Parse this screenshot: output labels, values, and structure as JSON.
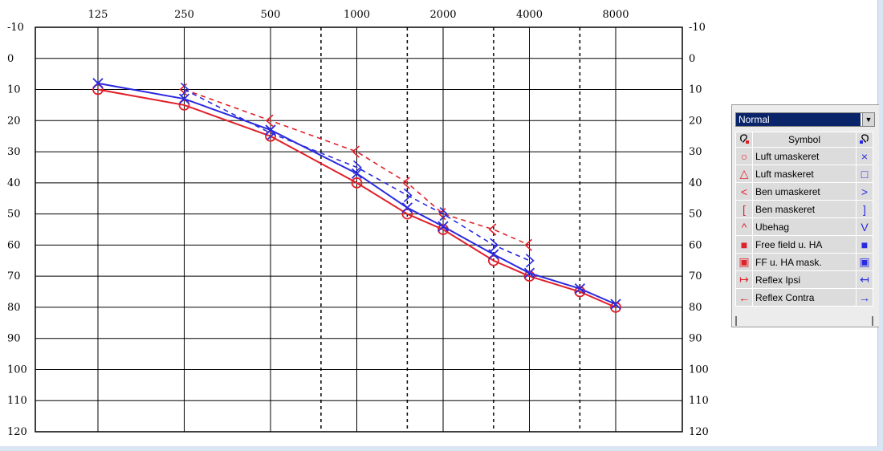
{
  "colors": {
    "right_ear": "#e0202a",
    "left_ear": "#2a2ae0",
    "panel_bg": "#ececec",
    "select_bg": "#0a246a"
  },
  "chart_data": {
    "type": "line",
    "x_scale": "log2",
    "x_ticks": [
      "125",
      "250",
      "500",
      "1000",
      "2000",
      "4000",
      "8000"
    ],
    "x_tick_values": [
      125,
      250,
      500,
      1000,
      2000,
      4000,
      8000
    ],
    "x_dashed_gridlines": [
      750,
      1500,
      3000,
      6000
    ],
    "y_ticks": [
      "-10",
      "0",
      "10",
      "20",
      "30",
      "40",
      "50",
      "60",
      "70",
      "80",
      "90",
      "100",
      "110",
      "120"
    ],
    "y_range": [
      -10,
      120
    ],
    "y_inverted": true,
    "grid": true,
    "series": [
      {
        "ear": "right",
        "line_style": "solid",
        "marker": "circle",
        "color": "#e0202a",
        "x": [
          125,
          250,
          500,
          1000,
          1500,
          2000,
          3000,
          4000,
          6000,
          8000
        ],
        "y": [
          10,
          15,
          25,
          40,
          50,
          55,
          65,
          70,
          75,
          80
        ]
      },
      {
        "ear": "left",
        "line_style": "solid",
        "marker": "cross",
        "color": "#2a2ae0",
        "x": [
          125,
          250,
          500,
          1000,
          1500,
          2000,
          3000,
          4000,
          6000,
          8000
        ],
        "y": [
          8,
          13,
          23,
          37,
          48,
          54,
          63,
          69,
          74,
          79
        ]
      },
      {
        "ear": "right",
        "line_style": "dashed",
        "marker": "bone-left",
        "color": "#e0202a",
        "x": [
          250,
          500,
          1000,
          1500,
          2000,
          3000,
          4000
        ],
        "y": [
          10,
          20,
          30,
          40,
          50,
          55,
          60
        ]
      },
      {
        "ear": "left",
        "line_style": "dashed",
        "marker": "bone-right",
        "color": "#2a2ae0",
        "x": [
          250,
          500,
          1000,
          1500,
          2000,
          3000,
          4000
        ],
        "y": [
          10,
          24,
          35,
          44,
          50,
          60,
          65
        ]
      }
    ]
  },
  "legend": {
    "preset": "Normal",
    "header": {
      "left_icon": "ear-red-icon",
      "label": "Symbol",
      "right_icon": "ear-blue-icon"
    },
    "rows": [
      {
        "left": "○",
        "label": "Luft umaskeret",
        "right": "×",
        "icon": "circle-icon"
      },
      {
        "left": "△",
        "label": "Luft maskeret",
        "right": "□",
        "icon": "triangle-icon"
      },
      {
        "left": "<",
        "label": "Ben umaskeret",
        "right": ">",
        "icon": "angle-icon"
      },
      {
        "left": "[",
        "label": "Ben maskeret",
        "right": "]",
        "icon": "bracket-icon"
      },
      {
        "left": "^",
        "label": "Ubehag",
        "right": "V",
        "icon": "caret-icon"
      },
      {
        "left": "■",
        "label": "Free field u. HA",
        "right": "■",
        "icon": "filled-square-icon"
      },
      {
        "left": "▣",
        "label": "FF u. HA mask.",
        "right": "▣",
        "icon": "boxed-square-icon"
      },
      {
        "left": "↦",
        "label": "Reflex Ipsi",
        "right": "↤",
        "icon": "reflex-ipsi-icon"
      },
      {
        "left": "←",
        "label": "Reflex Contra",
        "right": "→",
        "icon": "reflex-contra-icon"
      }
    ]
  }
}
